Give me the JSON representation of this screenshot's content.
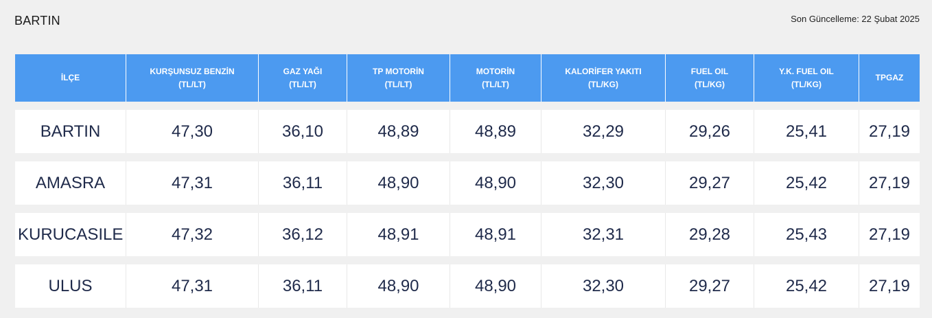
{
  "page": {
    "title": "BARTIN",
    "updated_label": "Son Güncelleme: 22 Şubat 2025"
  },
  "table": {
    "headers": [
      {
        "label": "İLÇE",
        "unit": ""
      },
      {
        "label": "KURŞUNSUZ BENZİN",
        "unit": "(TL/LT)"
      },
      {
        "label": "GAZ YAĞI",
        "unit": "(TL/LT)"
      },
      {
        "label": "TP MOTORİN",
        "unit": "(TL/LT)"
      },
      {
        "label": "MOTORİN",
        "unit": "(TL/LT)"
      },
      {
        "label": "KALORİFER YAKITI",
        "unit": "(TL/KG)"
      },
      {
        "label": "FUEL OIL",
        "unit": "(TL/KG)"
      },
      {
        "label": "Y.K. FUEL OIL",
        "unit": "(TL/KG)"
      },
      {
        "label": "TPGAZ",
        "unit": ""
      }
    ],
    "rows": [
      [
        "BARTIN",
        "47,30",
        "36,10",
        "48,89",
        "48,89",
        "32,29",
        "29,26",
        "25,41",
        "27,19"
      ],
      [
        "AMASRA",
        "47,31",
        "36,11",
        "48,90",
        "48,90",
        "32,30",
        "29,27",
        "25,42",
        "27,19"
      ],
      [
        "KURUCASILE",
        "47,32",
        "36,12",
        "48,91",
        "48,91",
        "32,31",
        "29,28",
        "25,43",
        "27,19"
      ],
      [
        "ULUS",
        "47,31",
        "36,11",
        "48,90",
        "48,90",
        "32,30",
        "29,27",
        "25,42",
        "27,19"
      ]
    ]
  }
}
